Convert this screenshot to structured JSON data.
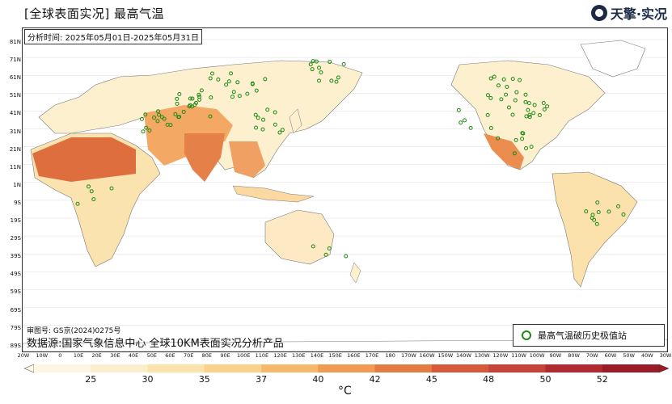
{
  "header": {
    "title": "[全球表面实况] 最高气温",
    "logo_text": "天擎·实况",
    "period": "分析时间: 2025年05月01日-2025年05月31日"
  },
  "map": {
    "lat_labels": [
      "81N",
      "71N",
      "61N",
      "51N",
      "41N",
      "31N",
      "21N",
      "11N",
      "1N",
      "9S",
      "19S",
      "29S",
      "39S",
      "49S",
      "59S",
      "69S",
      "79S",
      "89S"
    ],
    "lon_labels": [
      "20W",
      "10W",
      "0",
      "10E",
      "20E",
      "30E",
      "40E",
      "50E",
      "60E",
      "70E",
      "80E",
      "90E",
      "100E",
      "110E",
      "120E",
      "130E",
      "140E",
      "150E",
      "160E",
      "170E",
      "180",
      "170W",
      "160W",
      "150W",
      "140W",
      "130W",
      "120W",
      "110W",
      "100W",
      "90W",
      "80W",
      "70W",
      "60W",
      "50W",
      "40W",
      "30W"
    ],
    "colors": {
      "land_cool": "#fdf0cf",
      "land_warm": "#f6c27a",
      "land_hot": "#e9894c",
      "land_hottest": "#d65a3a",
      "record_station": "#1d8a16",
      "coastline": "#777777"
    }
  },
  "footer": {
    "review_number": "审图号: GS京(2024)0275号",
    "source": "数据源:国家气象信息中心 全球10KM表面实况分析产品",
    "legend_label": "最高气温破历史极值站"
  },
  "colorbar": {
    "ticks": [
      "25",
      "30",
      "35",
      "37",
      "40",
      "42",
      "45",
      "48",
      "50",
      "52"
    ],
    "colors": [
      "#fdf6e3",
      "#fdeecb",
      "#fce2ab",
      "#fad18a",
      "#f6b96b",
      "#f09a52",
      "#e57a43",
      "#d65a3a",
      "#c74238",
      "#b22a30",
      "#9c1b28"
    ],
    "unit": "°C"
  }
}
